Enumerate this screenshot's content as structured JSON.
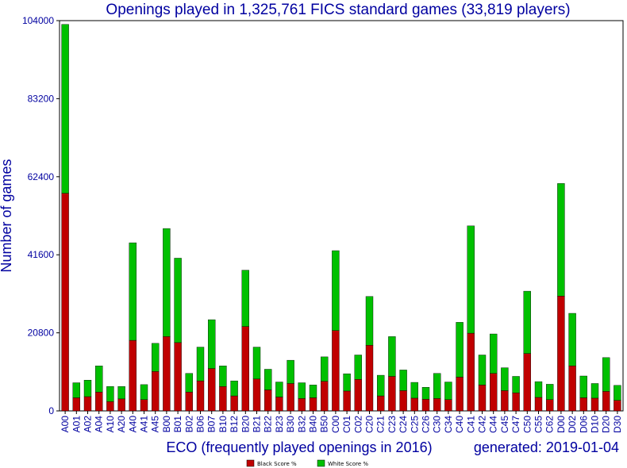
{
  "chart_data": {
    "type": "bar",
    "stacked": true,
    "title": "Openings played in 1,325,761 FICS standard games (33,819 players)",
    "xlabel": "ECO (frequently played openings in 2016)",
    "ylabel": "Number of games",
    "generated": "generated: 2019-01-04",
    "ylim": [
      0,
      104000
    ],
    "yticks": [
      "0",
      "20800",
      "41600",
      "62400",
      "83200",
      "104000"
    ],
    "grid": false,
    "legend_position": "bottom-center",
    "colors": {
      "black": "#c00000",
      "white": "#00c000",
      "text": "#0000a0"
    },
    "categories": [
      "A00",
      "A01",
      "A02",
      "A04",
      "A10",
      "A20",
      "A40",
      "A41",
      "A45",
      "B00",
      "B01",
      "B02",
      "B06",
      "B07",
      "B10",
      "B12",
      "B20",
      "B21",
      "B22",
      "B23",
      "B30",
      "B32",
      "B40",
      "B50",
      "C00",
      "C01",
      "C02",
      "C20",
      "C21",
      "C23",
      "C24",
      "C25",
      "C26",
      "C30",
      "C34",
      "C40",
      "C41",
      "C42",
      "C44",
      "C45",
      "C47",
      "C50",
      "C55",
      "C62",
      "D00",
      "D02",
      "D06",
      "D10",
      "D20",
      "D30"
    ],
    "series": [
      {
        "name": "Black Score %",
        "values": [
          58000,
          3500,
          3800,
          5000,
          2500,
          3200,
          18800,
          3000,
          10500,
          19800,
          18200,
          5000,
          8000,
          11300,
          6500,
          4000,
          22500,
          8500,
          5600,
          3700,
          7300,
          3300,
          3500,
          7900,
          21400,
          5300,
          8400,
          17500,
          4000,
          9200,
          5400,
          3400,
          3100,
          3300,
          3000,
          9000,
          20700,
          6900,
          10000,
          5400,
          4800,
          15300,
          3600,
          3000,
          30600,
          12000,
          3500,
          3400,
          5200,
          2800
        ]
      },
      {
        "name": "White Score %",
        "values": [
          45000,
          4000,
          4400,
          7000,
          4000,
          3300,
          26000,
          4000,
          7500,
          28800,
          22500,
          5000,
          9000,
          13000,
          5500,
          4000,
          15000,
          8500,
          5500,
          4000,
          6200,
          4200,
          3400,
          6500,
          21300,
          4600,
          6500,
          13000,
          5500,
          10600,
          5500,
          4200,
          3200,
          6700,
          4700,
          14600,
          28600,
          8000,
          10500,
          6100,
          4400,
          16600,
          4200,
          4100,
          30000,
          14000,
          5800,
          3900,
          9000,
          4000
        ]
      }
    ]
  }
}
